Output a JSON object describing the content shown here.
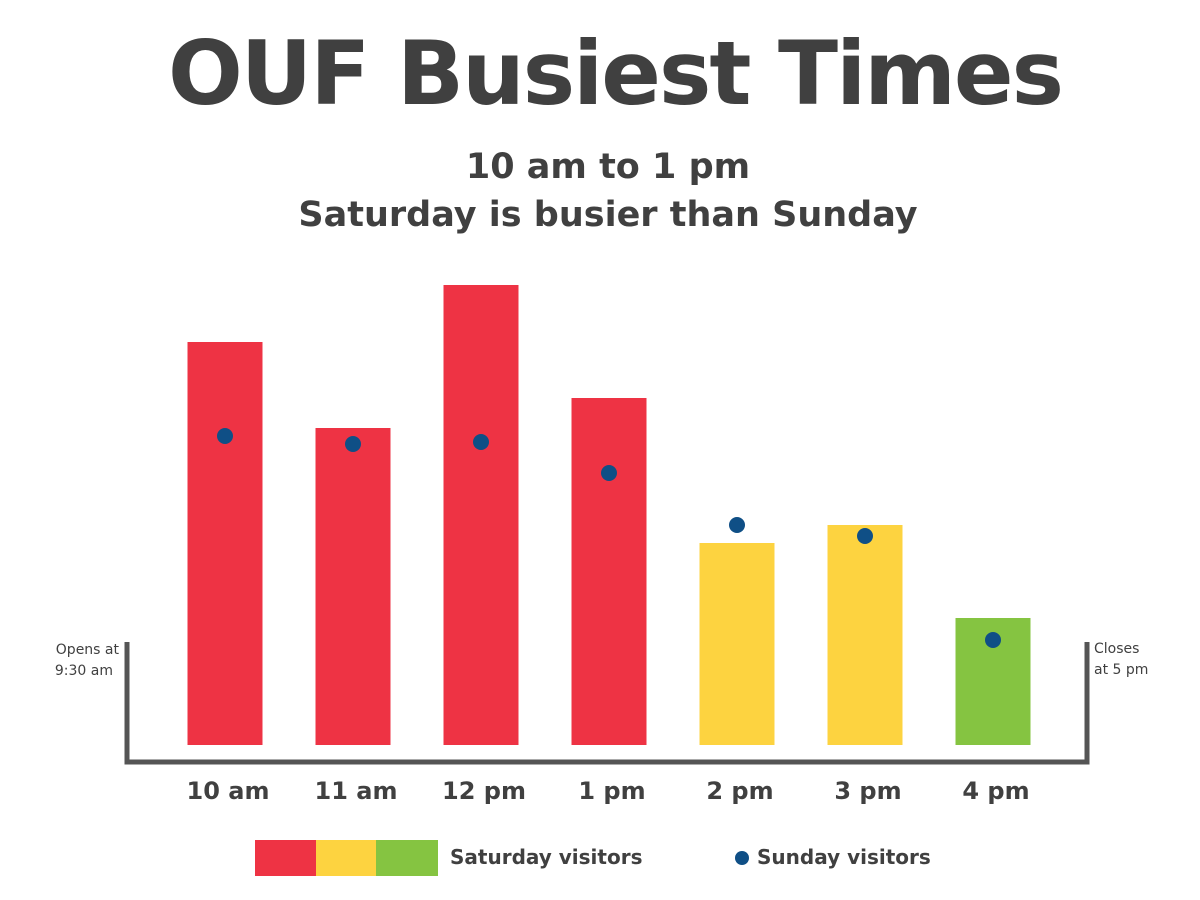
{
  "header": {
    "title": "OUF Busiest Times",
    "subtitle_line1": "10 am to 1 pm",
    "subtitle_line2": "Saturday is busier than Sunday"
  },
  "annotations": {
    "opens_line1": "Opens at",
    "opens_line2": "9:30 am",
    "closes_line1": "Closes",
    "closes_line2": "at 5 pm"
  },
  "legend": {
    "saturday_label": "Saturday visitors",
    "sunday_label": "Sunday visitors"
  },
  "colors": {
    "red": "#EE3344",
    "yellow": "#FDD340",
    "green": "#85C441",
    "dot": "#0F4F86",
    "axis": "#555555"
  },
  "chart_data": {
    "type": "bar",
    "title": "OUF Busiest Times",
    "subtitle": "10 am to 1 pm / Saturday is busier than Sunday",
    "categories": [
      "10 am",
      "11 am",
      "12 pm",
      "1 pm",
      "2 pm",
      "3 pm",
      "4 pm"
    ],
    "series": [
      {
        "name": "Saturday visitors",
        "type": "bar",
        "values": [
          403,
          317,
          460,
          347,
          202,
          220,
          127
        ],
        "colors": [
          "red",
          "red",
          "red",
          "red",
          "yellow",
          "yellow",
          "green"
        ]
      },
      {
        "name": "Sunday visitors",
        "type": "scatter",
        "values": [
          309,
          301,
          303,
          272,
          220,
          209,
          105
        ]
      }
    ],
    "ylim": [
      0,
      460
    ],
    "grid": false,
    "legend_position": "bottom"
  }
}
